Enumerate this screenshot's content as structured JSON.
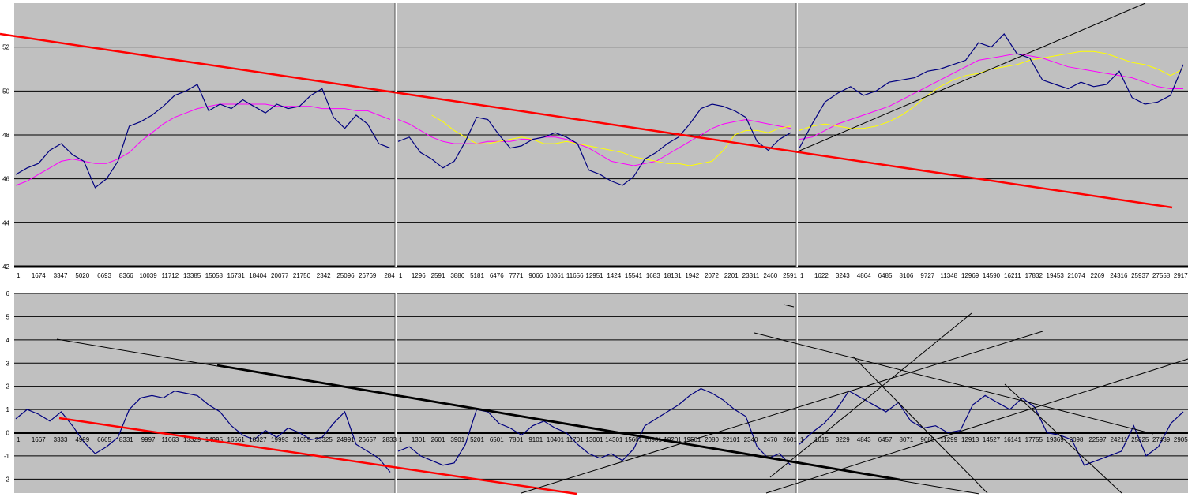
{
  "colors": {
    "plot_bg": "#c0c0c0",
    "price": "#00007f",
    "ma_magenta": "#ff00ff",
    "ma_yellow": "#ffff00",
    "trend_red": "#ff0000",
    "trend_black": "#000000",
    "grid": "#000000"
  },
  "chart_data": [
    {
      "type": "line",
      "panel": "top",
      "ylim": [
        42,
        54
      ],
      "yticks": [
        "42",
        "44",
        "46",
        "48",
        "50",
        "52"
      ],
      "grid": true,
      "segments": [
        {
          "xticks": [
            "1",
            "1674",
            "3347",
            "5020",
            "6693",
            "8366",
            "10039",
            "11712",
            "13385",
            "15058",
            "16731",
            "18404",
            "20077",
            "21750",
            "2342",
            "25096",
            "26769",
            "284"
          ],
          "price": [
            46.2,
            46.5,
            46.7,
            47.3,
            47.6,
            47.1,
            46.8,
            45.6,
            46.0,
            46.8,
            48.4,
            48.6,
            48.9,
            49.3,
            49.8,
            50.0,
            50.3,
            49.1,
            49.4,
            49.2,
            49.6,
            49.3,
            49.0,
            49.4,
            49.2,
            49.3,
            49.8,
            50.1,
            48.8,
            48.3,
            48.9,
            48.5,
            47.6,
            47.4
          ],
          "ma_magenta": [
            45.7,
            45.9,
            46.2,
            46.5,
            46.8,
            46.9,
            46.8,
            46.7,
            46.7,
            46.9,
            47.2,
            47.7,
            48.1,
            48.5,
            48.8,
            49.0,
            49.2,
            49.3,
            49.4,
            49.4,
            49.4,
            49.4,
            49.4,
            49.3,
            49.3,
            49.3,
            49.3,
            49.2,
            49.2,
            49.2,
            49.1,
            49.1,
            48.9,
            48.7
          ]
        },
        {
          "xticks": [
            "1",
            "1296",
            "2591",
            "3886",
            "5181",
            "6476",
            "7771",
            "9066",
            "10361",
            "11656",
            "12951",
            "1424",
            "15541",
            "1683",
            "18131",
            "1942",
            "2072",
            "2201",
            "23311",
            "2460",
            "2591"
          ],
          "price": [
            47.7,
            47.9,
            47.2,
            46.9,
            46.5,
            46.8,
            47.7,
            48.8,
            48.7,
            48.0,
            47.4,
            47.5,
            47.8,
            47.9,
            48.1,
            47.9,
            47.6,
            46.4,
            46.2,
            45.9,
            45.7,
            46.1,
            46.9,
            47.2,
            47.6,
            47.9,
            48.5,
            49.2,
            49.4,
            49.3,
            49.1,
            48.8,
            47.7,
            47.3,
            47.8,
            48.1
          ],
          "ma_magenta": [
            48.7,
            48.5,
            48.2,
            47.9,
            47.7,
            47.6,
            47.6,
            47.6,
            47.7,
            47.7,
            47.7,
            47.8,
            47.8,
            47.9,
            47.9,
            47.8,
            47.6,
            47.4,
            47.1,
            46.8,
            46.7,
            46.6,
            46.7,
            46.8,
            47.1,
            47.4,
            47.7,
            48.0,
            48.3,
            48.5,
            48.6,
            48.7,
            48.6,
            48.5,
            48.4,
            48.3
          ],
          "ma_yellow": [
            null,
            null,
            null,
            48.9,
            48.6,
            48.2,
            47.9,
            47.6,
            47.6,
            47.7,
            47.8,
            47.9,
            47.8,
            47.6,
            47.6,
            47.7,
            47.6,
            47.5,
            47.4,
            47.3,
            47.2,
            47.0,
            46.9,
            46.8,
            46.7,
            46.7,
            46.6,
            46.7,
            46.8,
            47.3,
            48.0,
            48.2,
            48.2,
            48.1,
            48.3,
            48.4
          ]
        },
        {
          "xticks": [
            "1",
            "1622",
            "3243",
            "4864",
            "6485",
            "8106",
            "9727",
            "11348",
            "12969",
            "14590",
            "16211",
            "17832",
            "19453",
            "21074",
            "2269",
            "24316",
            "25937",
            "27558",
            "29179"
          ],
          "price": [
            47.4,
            48.5,
            49.5,
            49.9,
            50.2,
            49.8,
            50.0,
            50.4,
            50.5,
            50.6,
            50.9,
            51.0,
            51.2,
            51.4,
            52.2,
            52.0,
            52.6,
            51.7,
            51.5,
            50.5,
            50.3,
            50.1,
            50.4,
            50.2,
            50.3,
            50.9,
            49.7,
            49.4,
            49.5,
            49.8,
            51.2
          ],
          "ma_magenta": [
            47.8,
            47.9,
            48.2,
            48.5,
            48.7,
            48.9,
            49.1,
            49.3,
            49.6,
            49.9,
            50.2,
            50.5,
            50.8,
            51.1,
            51.4,
            51.5,
            51.6,
            51.7,
            51.6,
            51.5,
            51.3,
            51.1,
            51.0,
            50.9,
            50.8,
            50.7,
            50.6,
            50.4,
            50.2,
            50.1,
            50.1
          ],
          "ma_yellow": [
            48.2,
            48.4,
            48.5,
            48.4,
            48.3,
            48.3,
            48.4,
            48.6,
            48.9,
            49.3,
            49.8,
            50.2,
            50.5,
            50.7,
            50.8,
            51.0,
            51.1,
            51.2,
            51.4,
            51.5,
            51.6,
            51.7,
            51.8,
            51.8,
            51.7,
            51.5,
            51.3,
            51.2,
            51.0,
            50.7,
            51.0
          ]
        }
      ]
    },
    {
      "type": "line",
      "panel": "bottom",
      "ylim": [
        -2.6,
        6
      ],
      "yticks": [
        "-2",
        "-1",
        "0",
        "1",
        "2",
        "3",
        "4",
        "5",
        "6"
      ],
      "grid": true,
      "segments": [
        {
          "xticks": [
            "1",
            "1667",
            "3333",
            "4999",
            "6665",
            "8331",
            "9997",
            "11663",
            "13329",
            "14995",
            "16661",
            "18327",
            "19993",
            "21659",
            "23325",
            "24991",
            "26657",
            "2833"
          ],
          "price": [
            0.6,
            1.0,
            0.8,
            0.5,
            0.9,
            0.3,
            -0.4,
            -0.9,
            -0.6,
            -0.2,
            1.0,
            1.5,
            1.6,
            1.5,
            1.8,
            1.7,
            1.6,
            1.2,
            0.9,
            0.3,
            -0.1,
            -0.3,
            0.1,
            -0.2,
            0.2,
            0.0,
            -0.3,
            -0.2,
            0.4,
            0.9,
            -0.5,
            -0.8,
            -1.1,
            -1.7
          ]
        },
        {
          "xticks": [
            "1",
            "1301",
            "2601",
            "3901",
            "5201",
            "6501",
            "7801",
            "9101",
            "10401",
            "11701",
            "13001",
            "14301",
            "15601",
            "16901",
            "18201",
            "19501",
            "2080",
            "22101",
            "2340",
            "2470",
            "2601"
          ],
          "price": [
            -0.8,
            -0.6,
            -1.0,
            -1.2,
            -1.4,
            -1.3,
            -0.5,
            1.0,
            0.9,
            0.4,
            0.2,
            -0.1,
            0.3,
            0.5,
            0.2,
            0.0,
            -0.5,
            -0.9,
            -1.1,
            -0.9,
            -1.2,
            -0.7,
            0.3,
            0.6,
            0.9,
            1.2,
            1.6,
            1.9,
            1.7,
            1.4,
            1.0,
            0.7,
            -0.6,
            -1.1,
            -0.9,
            -1.4
          ]
        },
        {
          "xticks": [
            "1",
            "1615",
            "3229",
            "4843",
            "6457",
            "8071",
            "9685",
            "11299",
            "12913",
            "14527",
            "16141",
            "17755",
            "19369",
            "2098",
            "22597",
            "24211",
            "25825",
            "27439",
            "29053"
          ],
          "price": [
            -0.5,
            0.0,
            0.4,
            1.0,
            1.8,
            1.5,
            1.2,
            0.9,
            1.3,
            0.5,
            0.2,
            0.3,
            0.0,
            0.1,
            1.2,
            1.6,
            1.3,
            1.0,
            1.5,
            1.1,
            0.0,
            -0.1,
            -0.3,
            -1.4,
            -1.2,
            -1.0,
            -0.8,
            0.3,
            -1.0,
            -0.6,
            0.4,
            0.9
          ]
        }
      ]
    }
  ]
}
